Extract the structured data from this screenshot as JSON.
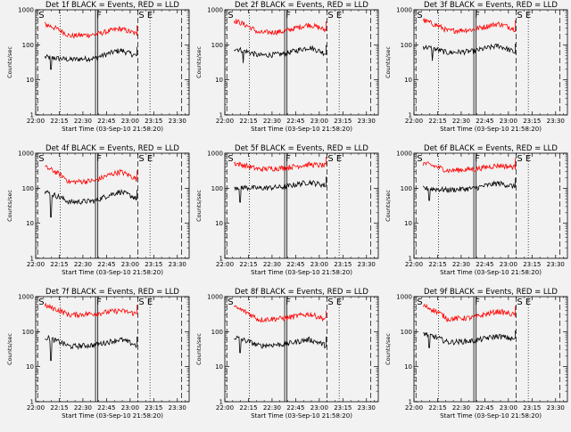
{
  "figure": {
    "background": "#f2f2f2",
    "events_color": "#000000",
    "lld_color": "#ff0000"
  },
  "chart_data": [
    {
      "type": "line",
      "title": "Det 1f BLACK = Events, RED = LLD",
      "xlabel": "Start Time (03-Sep-10 21:58:20)",
      "ylabel": "Counts/sec",
      "yscale": "log",
      "ylim": [
        1,
        1000
      ],
      "xticks": [
        "22:00",
        "22:15",
        "22:30",
        "22:45",
        "23:00",
        "23:15",
        "23:30"
      ],
      "yticks": [
        "1",
        "10",
        "100",
        "1000"
      ],
      "markers": {
        "S": "S",
        "F": "F",
        "SE": "S E"
      },
      "series": [
        {
          "values": {
            "start": 45,
            "mid": 38,
            "peak": 70,
            "end": 48,
            "spikes": [
              [
                0.1,
                20
              ]
            ]
          }
        },
        {
          "values": {
            "start": 390,
            "mid": 180,
            "peak": 290,
            "end": 200,
            "spikes": []
          }
        }
      ]
    },
    {
      "type": "line",
      "title": "Det 2f BLACK = Events, RED = LLD",
      "xlabel": "Start Time (03-Sep-10 21:58:20)",
      "ylabel": "Counts/sec",
      "yscale": "log",
      "ylim": [
        1,
        1000
      ],
      "xticks": [
        "22:00",
        "22:15",
        "22:30",
        "22:45",
        "23:00",
        "23:15",
        "23:30"
      ],
      "yticks": [
        "1",
        "10",
        "100",
        "1000"
      ],
      "markers": {
        "S": "S",
        "F": "F",
        "SE": "S E"
      },
      "series": [
        {
          "values": {
            "start": 80,
            "mid": 50,
            "peak": 85,
            "end": 55,
            "spikes": [
              [
                0.12,
                30
              ]
            ]
          }
        },
        {
          "values": {
            "start": 500,
            "mid": 220,
            "peak": 380,
            "end": 260,
            "spikes": []
          }
        }
      ]
    },
    {
      "type": "line",
      "title": "Det 3f BLACK = Events, RED = LLD",
      "xlabel": "Start Time (03-Sep-10 21:58:20)",
      "ylabel": "Counts/sec",
      "yscale": "log",
      "ylim": [
        1,
        1000
      ],
      "xticks": [
        "22:00",
        "22:15",
        "22:30",
        "22:45",
        "23:00",
        "23:15",
        "23:30"
      ],
      "yticks": [
        "1",
        "10",
        "100",
        "1000"
      ],
      "markers": {
        "S": "S",
        "F": "F",
        "SE": "S E"
      },
      "series": [
        {
          "values": {
            "start": 90,
            "mid": 60,
            "peak": 95,
            "end": 60,
            "spikes": [
              [
                0.12,
                35
              ]
            ]
          }
        },
        {
          "values": {
            "start": 500,
            "mid": 250,
            "peak": 400,
            "end": 280,
            "spikes": []
          }
        }
      ]
    },
    {
      "type": "line",
      "title": "Det 4f BLACK = Events, RED = LLD",
      "xlabel": "Start Time (03-Sep-10 21:58:20)",
      "ylabel": "Counts/sec",
      "yscale": "log",
      "ylim": [
        1,
        1000
      ],
      "xticks": [
        "22:00",
        "22:15",
        "22:30",
        "22:45",
        "23:00",
        "23:15",
        "23:30"
      ],
      "yticks": [
        "1",
        "10",
        "100",
        "1000"
      ],
      "markers": {
        "S": "S",
        "F": "F",
        "SE": "S E"
      },
      "series": [
        {
          "values": {
            "start": 80,
            "mid": 40,
            "peak": 80,
            "end": 50,
            "spikes": [
              [
                0.1,
                15
              ]
            ]
          }
        },
        {
          "values": {
            "start": 400,
            "mid": 150,
            "peak": 300,
            "end": 180,
            "spikes": []
          }
        }
      ]
    },
    {
      "type": "line",
      "title": "Det 5f BLACK = Events, RED = LLD",
      "xlabel": "Start Time (03-Sep-10 21:58:20)",
      "ylabel": "Counts/sec",
      "yscale": "log",
      "ylim": [
        1,
        1000
      ],
      "xticks": [
        "22:00",
        "22:15",
        "22:30",
        "22:45",
        "23:00",
        "23:15",
        "23:30"
      ],
      "yticks": [
        "1",
        "10",
        "100",
        "1000"
      ],
      "markers": {
        "S": "S",
        "F": "F",
        "SE": "S E"
      },
      "series": [
        {
          "values": {
            "start": 110,
            "mid": 100,
            "peak": 150,
            "end": 120,
            "spikes": [
              [
                0.1,
                40
              ]
            ]
          }
        },
        {
          "values": {
            "start": 520,
            "mid": 350,
            "peak": 480,
            "end": 440,
            "spikes": []
          }
        }
      ]
    },
    {
      "type": "line",
      "title": "Det 6f BLACK = Events, RED = LLD",
      "xlabel": "Start Time (03-Sep-10 21:58:20)",
      "ylabel": "Counts/sec",
      "yscale": "log",
      "ylim": [
        1,
        1000
      ],
      "xticks": [
        "22:00",
        "22:15",
        "22:30",
        "22:45",
        "23:00",
        "23:15",
        "23:30"
      ],
      "yticks": [
        "1",
        "10",
        "100",
        "1000"
      ],
      "markers": {
        "S": "S",
        "F": "F",
        "SE": "S E"
      },
      "series": [
        {
          "values": {
            "start": 100,
            "mid": 90,
            "peak": 140,
            "end": 110,
            "spikes": [
              [
                0.1,
                45
              ]
            ]
          }
        },
        {
          "values": {
            "start": 520,
            "mid": 320,
            "peak": 450,
            "end": 400,
            "spikes": []
          }
        }
      ]
    },
    {
      "type": "line",
      "title": "Det 7f BLACK = Events, RED = LLD",
      "xlabel": "Start Time (03-Sep-10 21:58:20)",
      "ylabel": "Counts/sec",
      "yscale": "log",
      "ylim": [
        1,
        1000
      ],
      "xticks": [
        "22:00",
        "22:15",
        "22:30",
        "22:45",
        "23:00",
        "23:15",
        "23:30"
      ],
      "yticks": [
        "1",
        "10",
        "100",
        "1000"
      ],
      "markers": {
        "S": "S",
        "F": "F",
        "SE": "S E"
      },
      "series": [
        {
          "values": {
            "start": 70,
            "mid": 38,
            "peak": 60,
            "end": 40,
            "spikes": [
              [
                0.1,
                15
              ]
            ]
          }
        },
        {
          "values": {
            "start": 550,
            "mid": 300,
            "peak": 400,
            "end": 320,
            "spikes": []
          }
        }
      ]
    },
    {
      "type": "line",
      "title": "Det 8f BLACK = Events, RED = LLD",
      "xlabel": "Start Time (03-Sep-10 21:58:20)",
      "ylabel": "Counts/sec",
      "yscale": "log",
      "ylim": [
        1,
        1000
      ],
      "xticks": [
        "22:00",
        "22:15",
        "22:30",
        "22:45",
        "23:00",
        "23:15",
        "23:30"
      ],
      "yticks": [
        "1",
        "10",
        "100",
        "1000"
      ],
      "markers": {
        "S": "S",
        "F": "F",
        "SE": "S E"
      },
      "series": [
        {
          "values": {
            "start": 70,
            "mid": 40,
            "peak": 60,
            "end": 40,
            "spikes": [
              [
                0.1,
                25
              ]
            ]
          }
        },
        {
          "values": {
            "start": 500,
            "mid": 220,
            "peak": 320,
            "end": 220,
            "spikes": []
          }
        }
      ]
    },
    {
      "type": "line",
      "title": "Det 9f BLACK = Events, RED = LLD",
      "xlabel": "Start Time (03-Sep-10 21:58:20)",
      "ylabel": "Counts/sec",
      "yscale": "log",
      "ylim": [
        1,
        1000
      ],
      "xticks": [
        "22:00",
        "22:15",
        "22:30",
        "22:45",
        "23:00",
        "23:15",
        "23:30"
      ],
      "yticks": [
        "1",
        "10",
        "100",
        "1000"
      ],
      "markers": {
        "S": "S",
        "F": "F",
        "SE": "S E"
      },
      "series": [
        {
          "values": {
            "start": 90,
            "mid": 50,
            "peak": 75,
            "end": 60,
            "spikes": [
              [
                0.1,
                35
              ]
            ]
          }
        },
        {
          "values": {
            "start": 550,
            "mid": 230,
            "peak": 380,
            "end": 300,
            "spikes": []
          }
        }
      ]
    }
  ]
}
